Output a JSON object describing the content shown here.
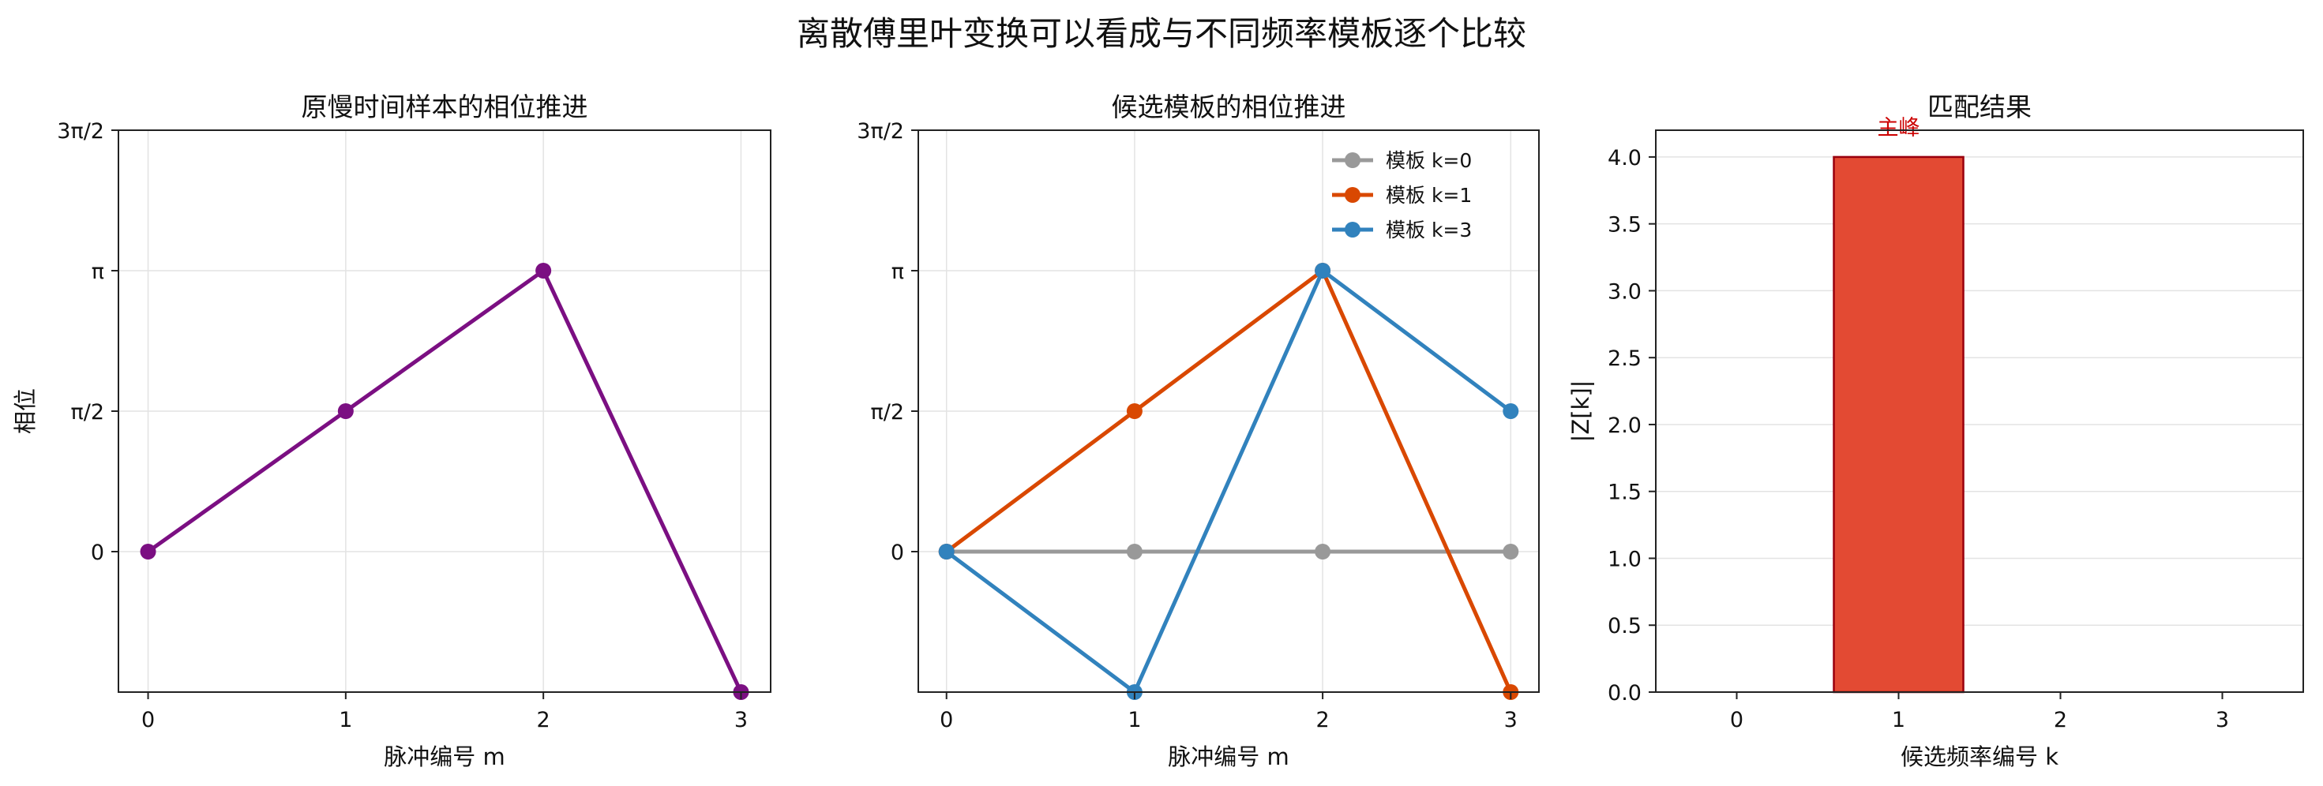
{
  "figure": {
    "title": "离散傅里叶变换可以看成与不同频率模板逐个比较"
  },
  "chart_data": [
    {
      "type": "line",
      "title": "原慢时间样本的相位推进",
      "xlabel": "脉冲编号 m",
      "ylabel": "相位",
      "x": [
        0,
        1,
        2,
        3
      ],
      "xticks": [
        "0",
        "1",
        "2",
        "3"
      ],
      "xlim": [
        -0.15,
        3.15
      ],
      "ylim": [
        -0.5,
        1.5
      ],
      "yunit": "π",
      "yticks": [
        {
          "value": 0,
          "label": "0"
        },
        {
          "value": 0.5,
          "label": "π/2"
        },
        {
          "value": 1,
          "label": "π"
        },
        {
          "value": 1.5,
          "label": "3π/2"
        }
      ],
      "grid": true,
      "series": [
        {
          "color": "#7b0f82",
          "values": [
            0,
            0.5,
            1,
            -0.5
          ]
        }
      ]
    },
    {
      "type": "line",
      "title": "候选模板的相位推进",
      "xlabel": "脉冲编号 m",
      "ylabel": "",
      "x": [
        0,
        1,
        2,
        3
      ],
      "xticks": [
        "0",
        "1",
        "2",
        "3"
      ],
      "xlim": [
        -0.15,
        3.15
      ],
      "ylim": [
        -0.5,
        1.5
      ],
      "yunit": "π",
      "yticks": [
        {
          "value": 0,
          "label": "0"
        },
        {
          "value": 0.5,
          "label": "π/2"
        },
        {
          "value": 1,
          "label": "π"
        },
        {
          "value": 1.5,
          "label": "3π/2"
        }
      ],
      "grid": true,
      "legend": "top-right",
      "series": [
        {
          "name": "模板 k=0",
          "color": "#999999",
          "values": [
            0,
            0,
            0,
            0
          ]
        },
        {
          "name": "模板 k=1",
          "color": "#d94801",
          "values": [
            0,
            0.5,
            1,
            -0.5
          ]
        },
        {
          "name": "模板 k=3",
          "color": "#3182bd",
          "values": [
            0,
            -0.5,
            1,
            0.5
          ]
        }
      ]
    },
    {
      "type": "bar",
      "title": "匹配结果",
      "xlabel": "候选频率编号 k",
      "ylabel": "|Z[k]|",
      "categories": [
        "0",
        "1",
        "2",
        "3"
      ],
      "values": [
        0,
        4,
        0,
        0
      ],
      "xlim": [
        -0.5,
        3.5
      ],
      "ylim": [
        0,
        4.2
      ],
      "yticks": [
        "0.0",
        "0.5",
        "1.0",
        "1.5",
        "2.0",
        "2.5",
        "3.0",
        "3.5",
        "4.0"
      ],
      "grid": true,
      "bar_color": "#e34a33",
      "bar_edge": "#99000d",
      "annotations": [
        {
          "x": 1,
          "y": 4.2,
          "text": "主峰",
          "color": "#cc0000"
        }
      ]
    }
  ]
}
